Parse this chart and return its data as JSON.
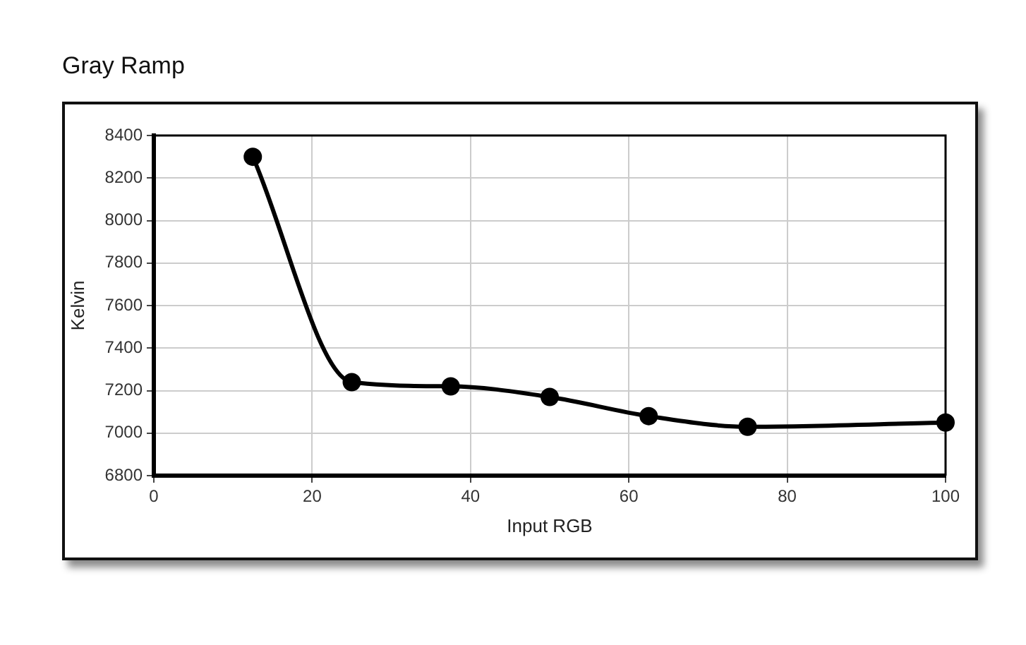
{
  "chart_data": {
    "type": "line",
    "title": "Gray Ramp",
    "xlabel": "Input RGB",
    "ylabel": "Kelvin",
    "x": [
      12.5,
      25,
      37.5,
      50,
      62.5,
      75,
      100
    ],
    "series": [
      {
        "color": "#000000",
        "values": [
          8300,
          7240,
          7220,
          7170,
          7080,
          7030,
          7050
        ]
      }
    ],
    "xlim": [
      0,
      100
    ],
    "xticks": [
      0,
      20,
      40,
      60,
      80,
      100
    ],
    "ylim": [
      6800,
      8400
    ],
    "yticks": [
      6800,
      7000,
      7200,
      7400,
      7600,
      7800,
      8000,
      8200,
      8400
    ],
    "grid": true,
    "marker": "circle",
    "line_style": "solid"
  }
}
